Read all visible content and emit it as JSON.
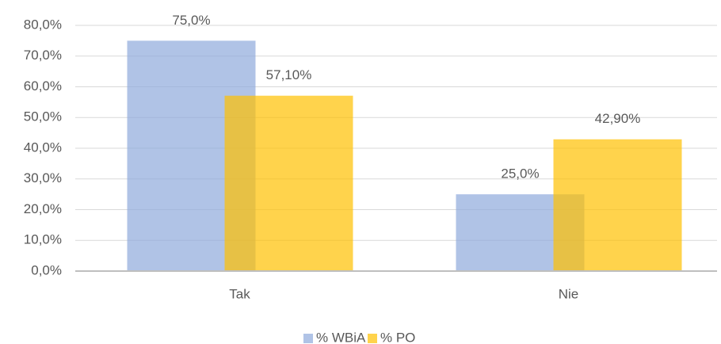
{
  "chart_data": {
    "type": "bar",
    "categories": [
      "Tak",
      "Nie"
    ],
    "series": [
      {
        "name": "% WBiA",
        "color": "#8faadc",
        "values": [
          75,
          25
        ],
        "value_labels": [
          "75,0%",
          "25,0%"
        ]
      },
      {
        "name": "% PO",
        "color": "#ffc000",
        "values": [
          57.1,
          42.9
        ],
        "value_labels": [
          "57,10%",
          "42,90%"
        ]
      }
    ],
    "opacity": 0.7,
    "ylim": [
      0,
      80
    ],
    "yticks": [
      {
        "value": 0,
        "label": "0,0%"
      },
      {
        "value": 10,
        "label": "10,0%"
      },
      {
        "value": 20,
        "label": "20,0%"
      },
      {
        "value": 30,
        "label": "30,0%"
      },
      {
        "value": 40,
        "label": "40,0%"
      },
      {
        "value": 50,
        "label": "50,0%"
      },
      {
        "value": 60,
        "label": "60,0%"
      },
      {
        "value": 70,
        "label": "70,0%"
      },
      {
        "value": 80,
        "label": "80,0%"
      }
    ],
    "grid": true,
    "legend": "bottom"
  }
}
